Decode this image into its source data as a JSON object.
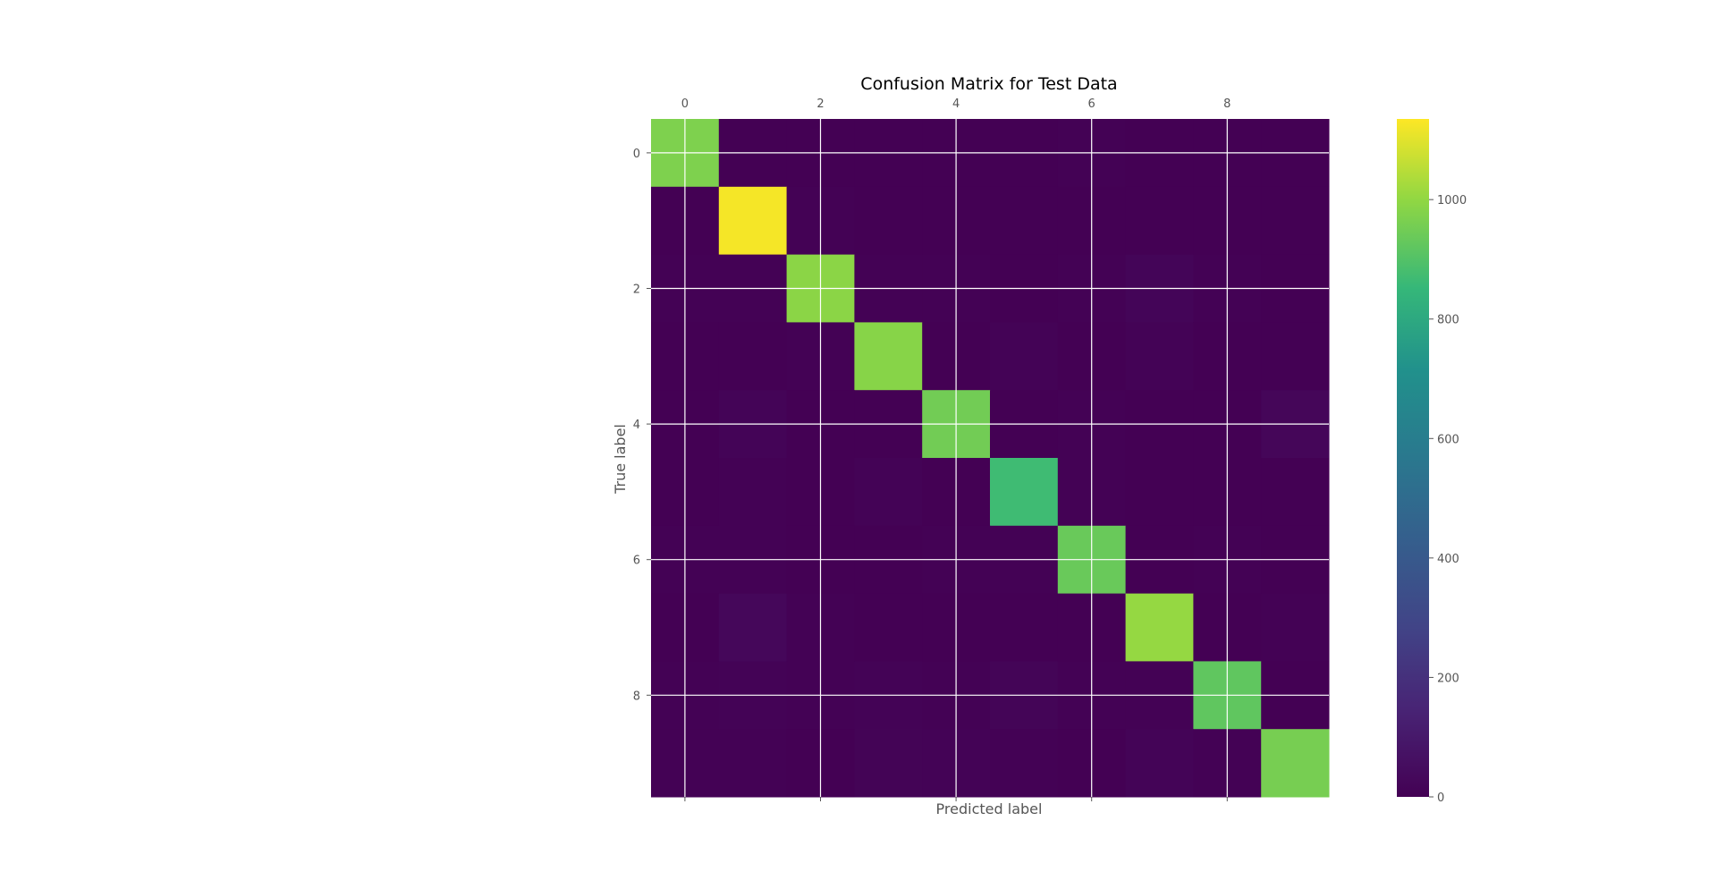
{
  "chart_data": {
    "type": "heatmap",
    "title": "Confusion Matrix for Test Data",
    "xlabel": "Predicted label",
    "ylabel": "True label",
    "x_tick_labels": [
      "0",
      "2",
      "4",
      "6",
      "8"
    ],
    "x_tick_positions": [
      0,
      2,
      4,
      6,
      8
    ],
    "y_tick_labels": [
      "0",
      "2",
      "4",
      "6",
      "8"
    ],
    "y_tick_positions": [
      0,
      2,
      4,
      6,
      8
    ],
    "colormap": "viridis",
    "color_range": [
      0,
      1135
    ],
    "colorbar_ticks": [
      0,
      200,
      400,
      600,
      800,
      1000
    ],
    "colorbar_tick_labels": [
      "0",
      "200",
      "400",
      "600",
      "800",
      "1000"
    ],
    "grid": true,
    "matrix": [
      [
        970,
        0,
        1,
        1,
        0,
        2,
        3,
        1,
        2,
        0
      ],
      [
        0,
        1125,
        3,
        2,
        0,
        1,
        2,
        0,
        2,
        0
      ],
      [
        6,
        5,
        990,
        4,
        3,
        0,
        3,
        18,
        3,
        0
      ],
      [
        0,
        0,
        3,
        985,
        0,
        9,
        0,
        10,
        2,
        1
      ],
      [
        1,
        14,
        2,
        0,
        950,
        0,
        5,
        2,
        2,
        22
      ],
      [
        2,
        4,
        0,
        8,
        2,
        868,
        4,
        1,
        2,
        1
      ],
      [
        6,
        5,
        1,
        0,
        3,
        5,
        935,
        0,
        3,
        0
      ],
      [
        1,
        25,
        6,
        2,
        1,
        0,
        0,
        1005,
        1,
        6
      ],
      [
        4,
        7,
        3,
        10,
        5,
        15,
        3,
        5,
        921,
        2
      ],
      [
        5,
        6,
        0,
        11,
        8,
        4,
        1,
        12,
        3,
        959
      ]
    ]
  }
}
